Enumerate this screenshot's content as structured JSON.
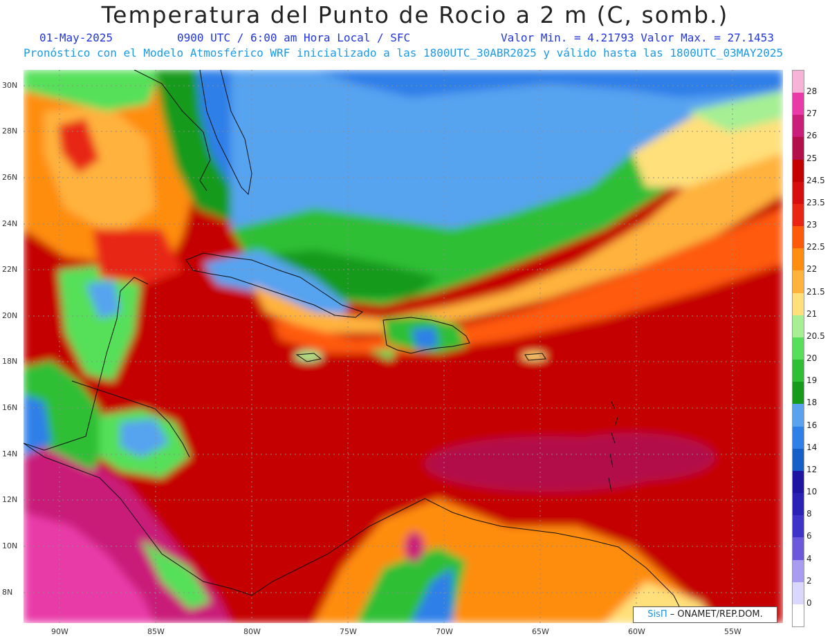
{
  "header": {
    "title": "Temperatura del Punto de Rocio a 2 m (C, somb.)",
    "date": "01-May-2025",
    "time": "0900 UTC / 6:00 am Hora Local / SFC",
    "min_max": "Valor Min. = 4.21793  Valor Max. = 27.1453",
    "model_line": "Pronóstico con el Modelo Atmosférico WRF inicializado a las 1800UTC_30ABR2025 y válido hasta las  1800UTC_03MAY2025"
  },
  "map": {
    "lat_labels": [
      "30N",
      "28N",
      "26N",
      "24N",
      "22N",
      "20N",
      "18N",
      "16N",
      "14N",
      "12N",
      "10N",
      "8N"
    ],
    "lon_labels": [
      "90W",
      "85W",
      "80W",
      "75W",
      "70W",
      "65W",
      "60W",
      "55W"
    ],
    "extent": {
      "lon_min": -92,
      "lon_max": -52.5,
      "lat_min": 6.8,
      "lat_max": 30.6
    }
  },
  "colorbar": {
    "labels": [
      "28",
      "27",
      "26",
      "25",
      "24.5",
      "23.5",
      "23",
      "22.5",
      "22",
      "21.5",
      "21",
      "20.5",
      "20",
      "19",
      "18",
      "16",
      "14",
      "12",
      "10",
      "8",
      "6",
      "4",
      "2",
      "0"
    ],
    "colors": [
      "#f6b3d6",
      "#e93aa8",
      "#c91e79",
      "#b30f4a",
      "#c40000",
      "#d80d0d",
      "#e82613",
      "#ff5a0a",
      "#ff8d0f",
      "#ffb23c",
      "#ffe07a",
      "#a6ef93",
      "#56e05a",
      "#2fbf34",
      "#159a1c",
      "#57a3f0",
      "#2f7fe8",
      "#165fc9",
      "#1e15a3",
      "#2a22b7",
      "#3f32c8",
      "#6b58dd",
      "#a79cf0",
      "#d9d7fb",
      "#ffffff"
    ]
  },
  "credit": {
    "brand": "SisΠ",
    "text": "– ONAMET/REP.DOM."
  }
}
